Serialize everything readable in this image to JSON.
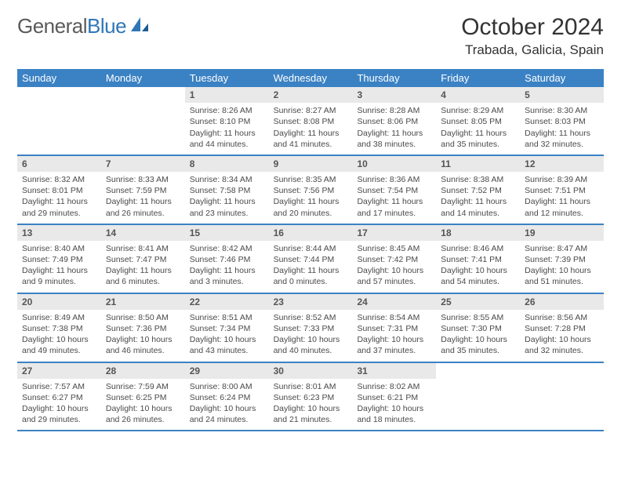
{
  "brand": {
    "word1": "General",
    "word2": "Blue"
  },
  "title": "October 2024",
  "location": "Trabada, Galicia, Spain",
  "colors": {
    "header_bg": "#3b82c4",
    "header_text": "#ffffff",
    "daynum_bg": "#e9e9e9",
    "daynum_text": "#555555",
    "body_text": "#4a4a4a",
    "row_border": "#3b82c4",
    "page_bg": "#ffffff"
  },
  "typography": {
    "title_fontsize": 30,
    "location_fontsize": 17,
    "weekday_fontsize": 13,
    "daynum_fontsize": 12,
    "body_fontsize": 10.5
  },
  "weekdays": [
    "Sunday",
    "Monday",
    "Tuesday",
    "Wednesday",
    "Thursday",
    "Friday",
    "Saturday"
  ],
  "weeks": [
    [
      null,
      null,
      {
        "n": "1",
        "sr": "Sunrise: 8:26 AM",
        "ss": "Sunset: 8:10 PM",
        "dl": "Daylight: 11 hours and 44 minutes."
      },
      {
        "n": "2",
        "sr": "Sunrise: 8:27 AM",
        "ss": "Sunset: 8:08 PM",
        "dl": "Daylight: 11 hours and 41 minutes."
      },
      {
        "n": "3",
        "sr": "Sunrise: 8:28 AM",
        "ss": "Sunset: 8:06 PM",
        "dl": "Daylight: 11 hours and 38 minutes."
      },
      {
        "n": "4",
        "sr": "Sunrise: 8:29 AM",
        "ss": "Sunset: 8:05 PM",
        "dl": "Daylight: 11 hours and 35 minutes."
      },
      {
        "n": "5",
        "sr": "Sunrise: 8:30 AM",
        "ss": "Sunset: 8:03 PM",
        "dl": "Daylight: 11 hours and 32 minutes."
      }
    ],
    [
      {
        "n": "6",
        "sr": "Sunrise: 8:32 AM",
        "ss": "Sunset: 8:01 PM",
        "dl": "Daylight: 11 hours and 29 minutes."
      },
      {
        "n": "7",
        "sr": "Sunrise: 8:33 AM",
        "ss": "Sunset: 7:59 PM",
        "dl": "Daylight: 11 hours and 26 minutes."
      },
      {
        "n": "8",
        "sr": "Sunrise: 8:34 AM",
        "ss": "Sunset: 7:58 PM",
        "dl": "Daylight: 11 hours and 23 minutes."
      },
      {
        "n": "9",
        "sr": "Sunrise: 8:35 AM",
        "ss": "Sunset: 7:56 PM",
        "dl": "Daylight: 11 hours and 20 minutes."
      },
      {
        "n": "10",
        "sr": "Sunrise: 8:36 AM",
        "ss": "Sunset: 7:54 PM",
        "dl": "Daylight: 11 hours and 17 minutes."
      },
      {
        "n": "11",
        "sr": "Sunrise: 8:38 AM",
        "ss": "Sunset: 7:52 PM",
        "dl": "Daylight: 11 hours and 14 minutes."
      },
      {
        "n": "12",
        "sr": "Sunrise: 8:39 AM",
        "ss": "Sunset: 7:51 PM",
        "dl": "Daylight: 11 hours and 12 minutes."
      }
    ],
    [
      {
        "n": "13",
        "sr": "Sunrise: 8:40 AM",
        "ss": "Sunset: 7:49 PM",
        "dl": "Daylight: 11 hours and 9 minutes."
      },
      {
        "n": "14",
        "sr": "Sunrise: 8:41 AM",
        "ss": "Sunset: 7:47 PM",
        "dl": "Daylight: 11 hours and 6 minutes."
      },
      {
        "n": "15",
        "sr": "Sunrise: 8:42 AM",
        "ss": "Sunset: 7:46 PM",
        "dl": "Daylight: 11 hours and 3 minutes."
      },
      {
        "n": "16",
        "sr": "Sunrise: 8:44 AM",
        "ss": "Sunset: 7:44 PM",
        "dl": "Daylight: 11 hours and 0 minutes."
      },
      {
        "n": "17",
        "sr": "Sunrise: 8:45 AM",
        "ss": "Sunset: 7:42 PM",
        "dl": "Daylight: 10 hours and 57 minutes."
      },
      {
        "n": "18",
        "sr": "Sunrise: 8:46 AM",
        "ss": "Sunset: 7:41 PM",
        "dl": "Daylight: 10 hours and 54 minutes."
      },
      {
        "n": "19",
        "sr": "Sunrise: 8:47 AM",
        "ss": "Sunset: 7:39 PM",
        "dl": "Daylight: 10 hours and 51 minutes."
      }
    ],
    [
      {
        "n": "20",
        "sr": "Sunrise: 8:49 AM",
        "ss": "Sunset: 7:38 PM",
        "dl": "Daylight: 10 hours and 49 minutes."
      },
      {
        "n": "21",
        "sr": "Sunrise: 8:50 AM",
        "ss": "Sunset: 7:36 PM",
        "dl": "Daylight: 10 hours and 46 minutes."
      },
      {
        "n": "22",
        "sr": "Sunrise: 8:51 AM",
        "ss": "Sunset: 7:34 PM",
        "dl": "Daylight: 10 hours and 43 minutes."
      },
      {
        "n": "23",
        "sr": "Sunrise: 8:52 AM",
        "ss": "Sunset: 7:33 PM",
        "dl": "Daylight: 10 hours and 40 minutes."
      },
      {
        "n": "24",
        "sr": "Sunrise: 8:54 AM",
        "ss": "Sunset: 7:31 PM",
        "dl": "Daylight: 10 hours and 37 minutes."
      },
      {
        "n": "25",
        "sr": "Sunrise: 8:55 AM",
        "ss": "Sunset: 7:30 PM",
        "dl": "Daylight: 10 hours and 35 minutes."
      },
      {
        "n": "26",
        "sr": "Sunrise: 8:56 AM",
        "ss": "Sunset: 7:28 PM",
        "dl": "Daylight: 10 hours and 32 minutes."
      }
    ],
    [
      {
        "n": "27",
        "sr": "Sunrise: 7:57 AM",
        "ss": "Sunset: 6:27 PM",
        "dl": "Daylight: 10 hours and 29 minutes."
      },
      {
        "n": "28",
        "sr": "Sunrise: 7:59 AM",
        "ss": "Sunset: 6:25 PM",
        "dl": "Daylight: 10 hours and 26 minutes."
      },
      {
        "n": "29",
        "sr": "Sunrise: 8:00 AM",
        "ss": "Sunset: 6:24 PM",
        "dl": "Daylight: 10 hours and 24 minutes."
      },
      {
        "n": "30",
        "sr": "Sunrise: 8:01 AM",
        "ss": "Sunset: 6:23 PM",
        "dl": "Daylight: 10 hours and 21 minutes."
      },
      {
        "n": "31",
        "sr": "Sunrise: 8:02 AM",
        "ss": "Sunset: 6:21 PM",
        "dl": "Daylight: 10 hours and 18 minutes."
      },
      null,
      null
    ]
  ]
}
